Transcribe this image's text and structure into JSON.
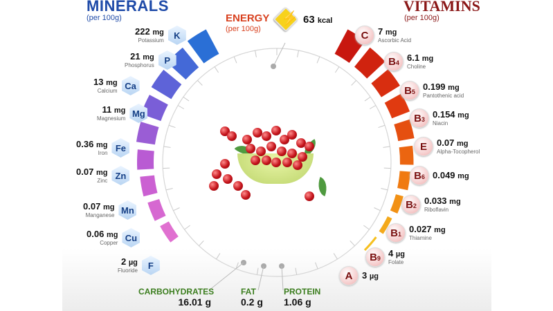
{
  "minerals": {
    "title": "MINERALS",
    "subtitle": "(per 100g)",
    "items": [
      {
        "symbol": "K",
        "amount": "222",
        "unit": "mg",
        "name": "Potassium"
      },
      {
        "symbol": "P",
        "amount": "21",
        "unit": "mg",
        "name": "Phosphorus"
      },
      {
        "symbol": "Ca",
        "amount": "13",
        "unit": "mg",
        "name": "Calcium"
      },
      {
        "symbol": "Mg",
        "amount": "11",
        "unit": "mg",
        "name": "Magnesium"
      },
      {
        "symbol": "Fe",
        "amount": "0.36",
        "unit": "mg",
        "name": "Iron"
      },
      {
        "symbol": "Zn",
        "amount": "0.07",
        "unit": "mg",
        "name": "Zinc"
      },
      {
        "symbol": "Mn",
        "amount": "0.07",
        "unit": "mg",
        "name": "Manganese"
      },
      {
        "symbol": "Cu",
        "amount": "0.06",
        "unit": "mg",
        "name": "Copper"
      },
      {
        "symbol": "F",
        "amount": "2",
        "unit": "µg",
        "name": "Fluoride"
      }
    ]
  },
  "energy": {
    "title": "ENERGY",
    "subtitle": "(per 100g)",
    "icon": "lightning-bolt-icon",
    "value": "63",
    "unit": "kcal"
  },
  "vitamins": {
    "title": "VITAMINS",
    "subtitle": "(per 100g)",
    "items": [
      {
        "letter": "C",
        "sub": "",
        "amount": "7",
        "unit": "mg",
        "name": "Ascorbic Acid"
      },
      {
        "letter": "B",
        "sub": "4",
        "amount": "6.1",
        "unit": "mg",
        "name": "Choline"
      },
      {
        "letter": "B",
        "sub": "5",
        "amount": "0.199",
        "unit": "mg",
        "name": "Pantothenic acid"
      },
      {
        "letter": "B",
        "sub": "3",
        "amount": "0.154",
        "unit": "mg",
        "name": "Niacin"
      },
      {
        "letter": "E",
        "sub": "",
        "amount": "0.07",
        "unit": "mg",
        "name": "Alpha-Tocopherol"
      },
      {
        "letter": "B",
        "sub": "6",
        "amount": "0.049",
        "unit": "mg",
        "name": ""
      },
      {
        "letter": "B",
        "sub": "2",
        "amount": "0.033",
        "unit": "mg",
        "name": "Riboflavin"
      },
      {
        "letter": "B",
        "sub": "1",
        "amount": "0.027",
        "unit": "mg",
        "name": "Thiamine"
      },
      {
        "letter": "B",
        "sub": "9",
        "amount": "4",
        "unit": "µg",
        "name": "Folate"
      },
      {
        "letter": "A",
        "sub": "",
        "amount": "3",
        "unit": "µg",
        "name": ""
      }
    ]
  },
  "macros": [
    {
      "label": "CARBOHYDRATES",
      "value": "16.01",
      "unit": "g"
    },
    {
      "label": "FAT",
      "value": "0.2",
      "unit": "g"
    },
    {
      "label": "PROTEIN",
      "value": "1.06",
      "unit": "g"
    }
  ],
  "colors": {
    "minerals_title": "#1e4aa8",
    "vitamins_title": "#8a1717",
    "energy_title": "#d8401e",
    "macro_label": "#3b7d1e",
    "mineral_bar_gradient": [
      "#2a6fd6",
      "#6f5fd8",
      "#c45ad2",
      "#e070d0"
    ],
    "vitamin_bar_gradient": [
      "#c8170f",
      "#e03a10",
      "#f07a10",
      "#f6c020"
    ]
  },
  "center_image": "cherries-in-bowl"
}
